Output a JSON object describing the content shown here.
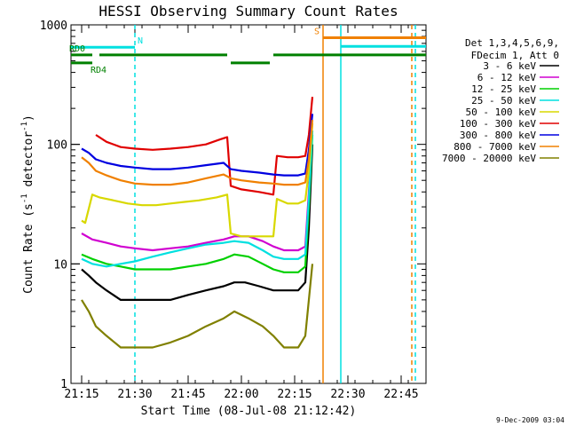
{
  "chart_data": {
    "type": "line",
    "title": "HESSI Observing Summary Count Rates",
    "xlabel": "Start Time (08-Jul-08 21:12:42)",
    "ylabel": "Count Rate (s^-1 detector^-1)",
    "ylabel_parts": {
      "main": "Count Rate (s",
      "sup1": "-1",
      "mid": " detector",
      "sup2": "-1",
      "end": ")"
    },
    "xlim": [
      "21:12",
      "22:52"
    ],
    "ylim": [
      1,
      1000
    ],
    "yscale": "log",
    "x_ticks": [
      "21:15",
      "21:30",
      "21:45",
      "22:00",
      "22:15",
      "22:30",
      "22:45"
    ],
    "y_ticks": [
      "1",
      "10",
      "100",
      "1000"
    ],
    "grid": false,
    "legend_placement": "right",
    "legend_header": [
      "Det 1,3,4,5,6,9,",
      "FDecim 1, Att 0"
    ],
    "footer_date": "9-Dec-2009 03:04",
    "series": [
      {
        "name": "3 - 6 keV",
        "color": "#000000",
        "points": [
          [
            "21:15",
            9
          ],
          [
            "21:17",
            8
          ],
          [
            "21:19",
            7
          ],
          [
            "21:22",
            6
          ],
          [
            "21:26",
            5
          ],
          [
            "21:30",
            5
          ],
          [
            "21:35",
            5
          ],
          [
            "21:40",
            5
          ],
          [
            "21:45",
            5.5
          ],
          [
            "21:50",
            6
          ],
          [
            "21:55",
            6.5
          ],
          [
            "21:58",
            7
          ],
          [
            "22:01",
            7
          ],
          [
            "22:05",
            6.5
          ],
          [
            "22:09",
            6
          ],
          [
            "22:12",
            6
          ],
          [
            "22:16",
            6
          ],
          [
            "22:18",
            7
          ],
          [
            "22:19",
            20
          ],
          [
            "22:20",
            100
          ]
        ]
      },
      {
        "name": "6 - 12 keV",
        "color": "#d000d0",
        "points": [
          [
            "21:15",
            18
          ],
          [
            "21:18",
            16
          ],
          [
            "21:22",
            15
          ],
          [
            "21:26",
            14
          ],
          [
            "21:30",
            13.5
          ],
          [
            "21:35",
            13
          ],
          [
            "21:40",
            13.5
          ],
          [
            "21:45",
            14
          ],
          [
            "21:50",
            15
          ],
          [
            "21:55",
            16
          ],
          [
            "21:58",
            17
          ],
          [
            "22:02",
            17
          ],
          [
            "22:06",
            15.5
          ],
          [
            "22:09",
            14
          ],
          [
            "22:12",
            13
          ],
          [
            "22:16",
            13
          ],
          [
            "22:18",
            14
          ],
          [
            "22:19",
            40
          ],
          [
            "22:20",
            130
          ]
        ]
      },
      {
        "name": "12 - 25 keV",
        "color": "#00d000",
        "points": [
          [
            "21:15",
            12
          ],
          [
            "21:18",
            11
          ],
          [
            "21:22",
            10
          ],
          [
            "21:26",
            9.5
          ],
          [
            "21:30",
            9
          ],
          [
            "21:35",
            9
          ],
          [
            "21:40",
            9
          ],
          [
            "21:45",
            9.5
          ],
          [
            "21:50",
            10
          ],
          [
            "21:55",
            11
          ],
          [
            "21:58",
            12
          ],
          [
            "22:02",
            11.5
          ],
          [
            "22:06",
            10
          ],
          [
            "22:09",
            9
          ],
          [
            "22:12",
            8.5
          ],
          [
            "22:16",
            8.5
          ],
          [
            "22:18",
            9.5
          ],
          [
            "22:19",
            30
          ],
          [
            "22:20",
            120
          ]
        ]
      },
      {
        "name": "25 - 50 keV",
        "color": "#00e0e0",
        "points": [
          [
            "21:15",
            11
          ],
          [
            "21:18",
            10
          ],
          [
            "21:22",
            9.5
          ],
          [
            "21:26",
            10
          ],
          [
            "21:30",
            10.5
          ],
          [
            "21:35",
            11.5
          ],
          [
            "21:40",
            12.5
          ],
          [
            "21:45",
            13.5
          ],
          [
            "21:50",
            14.5
          ],
          [
            "21:55",
            15
          ],
          [
            "21:58",
            15.5
          ],
          [
            "22:02",
            15
          ],
          [
            "22:06",
            13
          ],
          [
            "22:09",
            11.5
          ],
          [
            "22:12",
            11
          ],
          [
            "22:16",
            11
          ],
          [
            "22:18",
            12
          ],
          [
            "22:19",
            35
          ],
          [
            "22:20",
            130
          ]
        ]
      },
      {
        "name": "50 - 100 keV",
        "color": "#d8d800",
        "points": [
          [
            "21:15",
            23
          ],
          [
            "21:16",
            22
          ],
          [
            "21:18",
            38
          ],
          [
            "21:20",
            36
          ],
          [
            "21:24",
            34
          ],
          [
            "21:28",
            32
          ],
          [
            "21:32",
            31
          ],
          [
            "21:36",
            31
          ],
          [
            "21:40",
            32
          ],
          [
            "21:44",
            33
          ],
          [
            "21:48",
            34
          ],
          [
            "21:53",
            36
          ],
          [
            "21:56",
            38
          ],
          [
            "21:57",
            18
          ],
          [
            "22:00",
            17
          ],
          [
            "22:05",
            17
          ],
          [
            "22:09",
            17
          ],
          [
            "22:10",
            35
          ],
          [
            "22:13",
            32
          ],
          [
            "22:16",
            32
          ],
          [
            "22:18",
            34
          ],
          [
            "22:19",
            60
          ],
          [
            "22:20",
            150
          ]
        ]
      },
      {
        "name": "100 - 300 keV",
        "color": "#e00000",
        "points": [
          [
            "21:19",
            120
          ],
          [
            "21:22",
            105
          ],
          [
            "21:26",
            95
          ],
          [
            "21:30",
            92
          ],
          [
            "21:35",
            90
          ],
          [
            "21:40",
            92
          ],
          [
            "21:45",
            95
          ],
          [
            "21:50",
            100
          ],
          [
            "21:54",
            110
          ],
          [
            "21:56",
            115
          ],
          [
            "21:57",
            45
          ],
          [
            "22:00",
            42
          ],
          [
            "22:05",
            40
          ],
          [
            "22:09",
            38
          ],
          [
            "22:10",
            80
          ],
          [
            "22:13",
            78
          ],
          [
            "22:16",
            78
          ],
          [
            "22:18",
            80
          ],
          [
            "22:19",
            120
          ],
          [
            "22:20",
            250
          ]
        ]
      },
      {
        "name": "300 - 800 keV",
        "color": "#0000e0",
        "points": [
          [
            "21:15",
            92
          ],
          [
            "21:17",
            85
          ],
          [
            "21:19",
            75
          ],
          [
            "21:22",
            70
          ],
          [
            "21:26",
            66
          ],
          [
            "21:30",
            64
          ],
          [
            "21:35",
            62
          ],
          [
            "21:40",
            62
          ],
          [
            "21:45",
            64
          ],
          [
            "21:50",
            67
          ],
          [
            "21:55",
            70
          ],
          [
            "21:57",
            62
          ],
          [
            "22:00",
            60
          ],
          [
            "22:05",
            58
          ],
          [
            "22:09",
            56
          ],
          [
            "22:12",
            55
          ],
          [
            "22:16",
            55
          ],
          [
            "22:18",
            57
          ],
          [
            "22:19",
            90
          ],
          [
            "22:20",
            180
          ]
        ]
      },
      {
        "name": "800 - 7000 keV",
        "color": "#f08000",
        "points": [
          [
            "21:15",
            78
          ],
          [
            "21:17",
            70
          ],
          [
            "21:19",
            60
          ],
          [
            "21:22",
            55
          ],
          [
            "21:26",
            50
          ],
          [
            "21:30",
            47
          ],
          [
            "21:35",
            46
          ],
          [
            "21:40",
            46
          ],
          [
            "21:45",
            48
          ],
          [
            "21:50",
            52
          ],
          [
            "21:55",
            56
          ],
          [
            "21:57",
            52
          ],
          [
            "22:00",
            50
          ],
          [
            "22:05",
            48
          ],
          [
            "22:09",
            47
          ],
          [
            "22:12",
            46
          ],
          [
            "22:16",
            46
          ],
          [
            "22:18",
            48
          ],
          [
            "22:19",
            75
          ],
          [
            "22:20",
            160
          ]
        ]
      },
      {
        "name": "7000 - 20000 keV",
        "color": "#808000",
        "points": [
          [
            "21:15",
            5
          ],
          [
            "21:17",
            4
          ],
          [
            "21:19",
            3
          ],
          [
            "21:22",
            2.5
          ],
          [
            "21:26",
            2
          ],
          [
            "21:30",
            2
          ],
          [
            "21:35",
            2
          ],
          [
            "21:40",
            2.2
          ],
          [
            "21:45",
            2.5
          ],
          [
            "21:50",
            3
          ],
          [
            "21:55",
            3.5
          ],
          [
            "21:58",
            4
          ],
          [
            "22:02",
            3.5
          ],
          [
            "22:06",
            3
          ],
          [
            "22:09",
            2.5
          ],
          [
            "22:12",
            2
          ],
          [
            "22:16",
            2
          ],
          [
            "22:18",
            2.5
          ],
          [
            "22:19",
            5
          ],
          [
            "22:20",
            10
          ]
        ]
      }
    ],
    "vertical_markers": [
      {
        "x": "21:30",
        "color": "#00e0e0",
        "style": "dashed"
      },
      {
        "x": "22:23",
        "color": "#f08000",
        "style": "solid"
      },
      {
        "x": "22:28",
        "color": "#00e0e0",
        "style": "solid"
      },
      {
        "x": "22:48",
        "color": "#f08000",
        "style": "dashed"
      },
      {
        "x": "22:49",
        "color": "#00e0e0",
        "style": "dashed"
      }
    ],
    "status_bars": [
      {
        "label": "N",
        "color": "#00e0e0",
        "value": 650,
        "segments": [
          [
            "21:12",
            "21:30"
          ]
        ]
      },
      {
        "label": "RD0",
        "color": "#008000",
        "value": 560,
        "segments": [
          [
            "21:12",
            "21:18"
          ],
          [
            "21:20",
            "21:56"
          ],
          [
            "22:09",
            "22:52"
          ]
        ]
      },
      {
        "label": "RD4",
        "color": "#008000",
        "value": 480,
        "segments": [
          [
            "21:12",
            "21:18"
          ],
          [
            "21:57",
            "22:08"
          ]
        ]
      },
      {
        "label": "S",
        "color": "#f08000",
        "value": 780,
        "segments": [
          [
            "22:23",
            "22:52"
          ]
        ]
      },
      {
        "label": "",
        "color": "#00e0e0",
        "value": 660,
        "segments": [
          [
            "22:28",
            "22:52"
          ]
        ]
      }
    ]
  }
}
